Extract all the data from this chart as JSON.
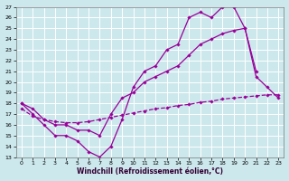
{
  "xlabel": "Windchill (Refroidissement éolien,°C)",
  "xlim": [
    -0.5,
    23.5
  ],
  "ylim": [
    13,
    27
  ],
  "xticks": [
    0,
    1,
    2,
    3,
    4,
    5,
    6,
    7,
    8,
    9,
    10,
    11,
    12,
    13,
    14,
    15,
    16,
    17,
    18,
    19,
    20,
    21,
    22,
    23
  ],
  "yticks": [
    13,
    14,
    15,
    16,
    17,
    18,
    19,
    20,
    21,
    22,
    23,
    24,
    25,
    26,
    27
  ],
  "bg_color": "#cce8ec",
  "grid_color": "#b0d8de",
  "line_color": "#990099",
  "line1_x": [
    0,
    1,
    2,
    3,
    4,
    5,
    6,
    7,
    8,
    9,
    10,
    11,
    12,
    13,
    14,
    15,
    16,
    17,
    18,
    19,
    20,
    21
  ],
  "line1_y": [
    18.0,
    17.0,
    16.0,
    15.0,
    15.0,
    14.5,
    13.5,
    13.0,
    14.0,
    16.5,
    19.5,
    21.0,
    21.5,
    23.0,
    23.5,
    26.0,
    26.5,
    26.0,
    27.0,
    27.0,
    25.0,
    21.0
  ],
  "line2_x": [
    0,
    1,
    2,
    3,
    4,
    5,
    6,
    7,
    8,
    9,
    10,
    11,
    12,
    13,
    14,
    15,
    16,
    17,
    18,
    19,
    20,
    21,
    22,
    23
  ],
  "line2_y": [
    17.5,
    16.8,
    16.5,
    16.3,
    16.2,
    16.2,
    16.3,
    16.5,
    16.7,
    16.9,
    17.1,
    17.3,
    17.5,
    17.6,
    17.8,
    17.9,
    18.1,
    18.2,
    18.4,
    18.5,
    18.6,
    18.7,
    18.8,
    18.8
  ],
  "line3_x": [
    0,
    1,
    2,
    3,
    4,
    5,
    6,
    7,
    8,
    9,
    10,
    11,
    12,
    13,
    14,
    15,
    16,
    17,
    18,
    19,
    20,
    21,
    22,
    23
  ],
  "line3_y": [
    18.0,
    17.5,
    16.5,
    16.0,
    16.0,
    15.5,
    15.5,
    15.0,
    17.0,
    18.5,
    19.0,
    20.0,
    20.5,
    21.0,
    21.5,
    22.5,
    23.5,
    24.0,
    24.5,
    24.8,
    25.0,
    20.5,
    19.5,
    18.5
  ]
}
